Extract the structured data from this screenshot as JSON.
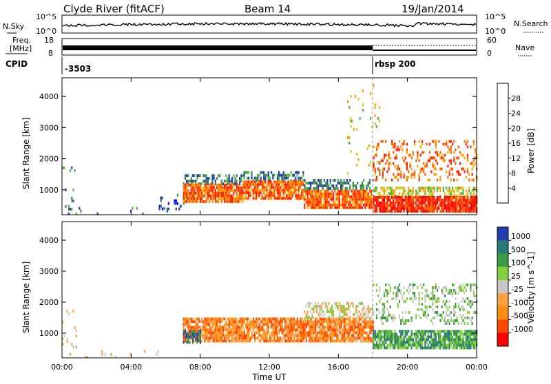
{
  "header": {
    "site": "Clyde River (fitACF)",
    "beam": "Beam 14",
    "date": "19/Jan/2014"
  },
  "noise_panel": {
    "left_label": "N.Sky",
    "right_label": "N.Search",
    "left_ticks": [
      "10^5",
      "10^0"
    ],
    "right_ticks": [
      "10^5",
      "10^0"
    ]
  },
  "freq_panel": {
    "left_label_1": "Freq.",
    "left_label_2": "[MHz]",
    "left_ticks": [
      "18",
      "8"
    ],
    "right_label": "Nave",
    "right_ticks": [
      "60",
      "0"
    ]
  },
  "cpid_panel": {
    "label": "CPID",
    "entries": [
      {
        "time_h": 0.0,
        "text": "-3503"
      },
      {
        "time_h": 18.0,
        "text": "rbsp 200"
      }
    ]
  },
  "colors": {
    "power_scale": [
      "#0000ff",
      "#1f3fb0",
      "#3c7f5a",
      "#4fb33c",
      "#c8d020",
      "#ffa000",
      "#ff6000",
      "#ff2000",
      "#ff0000"
    ],
    "velocity_scale": [
      "#ff0000",
      "#ff4800",
      "#ff8c10",
      "#ffa040",
      "#c8c8c8",
      "#80d040",
      "#3c9a40",
      "#2a7a7a",
      "#2040b0"
    ]
  },
  "chart_data": [
    {
      "type": "heatmap",
      "name": "power",
      "ylabel": "Slant Range [km]",
      "y_ticks": [
        1000,
        2000,
        3000,
        4000
      ],
      "ylim": [
        200,
        4600
      ],
      "colorbar": {
        "label": "Power [dB]",
        "tick_labels": [
          "4",
          "8",
          "12",
          "16",
          "20",
          "24",
          "28"
        ],
        "range": [
          0,
          32
        ]
      },
      "regions": [
        {
          "start": 0.0,
          "end": 0.8,
          "r0": 400,
          "r1": 1750,
          "density": 0.12,
          "level": 6
        },
        {
          "start": 0.0,
          "end": 6.5,
          "r0": 200,
          "r1": 450,
          "density": 0.05,
          "level": 6
        },
        {
          "start": 5.6,
          "end": 7.2,
          "r0": 400,
          "r1": 1050,
          "density": 0.18,
          "level": 5
        },
        {
          "start": 7.0,
          "end": 10.5,
          "r0": 1200,
          "r1": 1500,
          "density": 0.55,
          "level": 8
        },
        {
          "start": 7.0,
          "end": 10.5,
          "r0": 600,
          "r1": 1200,
          "density": 0.85,
          "level": 25
        },
        {
          "start": 10.5,
          "end": 14.0,
          "r0": 1300,
          "r1": 1600,
          "density": 0.55,
          "level": 8
        },
        {
          "start": 10.5,
          "end": 14.0,
          "r0": 700,
          "r1": 1300,
          "density": 0.85,
          "level": 24
        },
        {
          "start": 14.0,
          "end": 18.0,
          "r0": 1000,
          "r1": 1350,
          "density": 0.55,
          "level": 9
        },
        {
          "start": 14.0,
          "end": 18.0,
          "r0": 400,
          "r1": 1000,
          "density": 0.85,
          "level": 24
        },
        {
          "start": 18.0,
          "end": 24.0,
          "r0": 800,
          "r1": 1100,
          "density": 0.55,
          "level": 14
        },
        {
          "start": 18.0,
          "end": 24.0,
          "r0": 300,
          "r1": 800,
          "density": 0.9,
          "level": 29
        },
        {
          "start": 18.0,
          "end": 24.0,
          "r0": 1300,
          "r1": 2600,
          "density": 0.28,
          "level": 22
        },
        {
          "start": 16.5,
          "end": 18.5,
          "r0": 1500,
          "r1": 4400,
          "density": 0.06,
          "level": 14
        }
      ]
    },
    {
      "type": "heatmap",
      "name": "velocity",
      "ylabel": "Slant Range [km]",
      "y_ticks": [
        1000,
        2000,
        3000,
        4000
      ],
      "ylim": [
        200,
        4600
      ],
      "colorbar": {
        "label": "Velocity [m s^-1]",
        "tick_labels": [
          "1000",
          "500",
          "100",
          "25",
          "-25",
          "-100",
          "-500",
          "-1000"
        ]
      },
      "regions": [
        {
          "start": 0.0,
          "end": 0.8,
          "r0": 500,
          "r1": 1750,
          "density": 0.1,
          "level": 4
        },
        {
          "start": 0.0,
          "end": 6.5,
          "r0": 200,
          "r1": 450,
          "density": 0.05,
          "level": 4
        },
        {
          "start": 7.0,
          "end": 18.0,
          "r0": 700,
          "r1": 1500,
          "density": 0.85,
          "level": 2
        },
        {
          "start": 7.0,
          "end": 8.0,
          "r0": 700,
          "r1": 1100,
          "density": 0.7,
          "level": 7
        },
        {
          "start": 14.0,
          "end": 18.0,
          "r0": 1500,
          "r1": 2000,
          "density": 0.45,
          "level": 4
        },
        {
          "start": 18.0,
          "end": 24.0,
          "r0": 500,
          "r1": 1100,
          "density": 0.85,
          "level": 6
        },
        {
          "start": 18.0,
          "end": 24.0,
          "r0": 1300,
          "r1": 2600,
          "density": 0.28,
          "level": 5
        }
      ]
    }
  ],
  "x_axis": {
    "label": "Time UT",
    "tick_labels": [
      "00:00",
      "04:00",
      "08:00",
      "12:00",
      "16:00",
      "20:00",
      "00:00"
    ],
    "xlim": [
      0,
      24
    ]
  }
}
